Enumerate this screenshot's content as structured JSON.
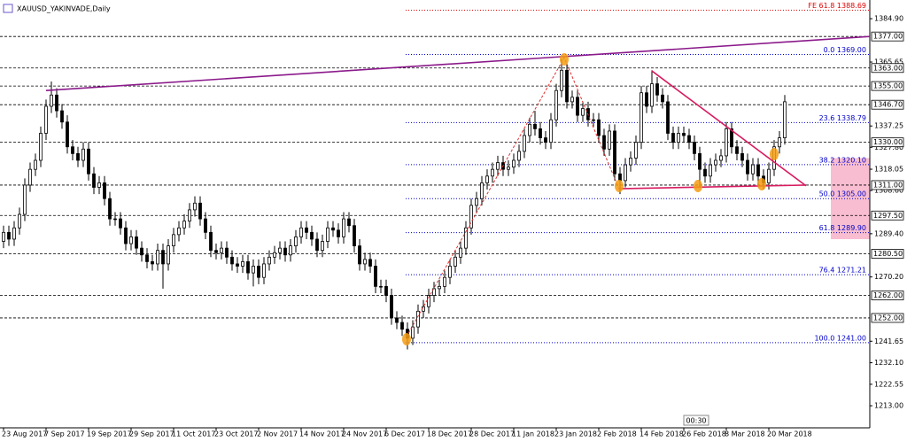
{
  "chart_data": {
    "type": "candlestick",
    "title": "XAUUSD_YAKINVADE,Daily",
    "clock": "00:30",
    "ylim": [
      1203.2,
      1393.2
    ],
    "yticks": [
      {
        "value": 1384.9,
        "label": "1384.90"
      },
      {
        "value": 1365.65,
        "label": "1365.65"
      },
      {
        "value": 1337.25,
        "label": "1337.25"
      },
      {
        "value": 1327.8,
        "label": "1327.80"
      },
      {
        "value": 1318.05,
        "label": "1318.05"
      },
      {
        "value": 1308.6,
        "label": "1308.60"
      },
      {
        "value": 1289.4,
        "label": "1289.40"
      },
      {
        "value": 1270.2,
        "label": "1270.20"
      },
      {
        "value": 1241.65,
        "label": "1241.65"
      },
      {
        "value": 1232.1,
        "label": "1232.10"
      },
      {
        "value": 1222.55,
        "label": "1222.55"
      },
      {
        "value": 1213,
        "label": "1213.00"
      }
    ],
    "xticks": [
      {
        "value": 0,
        "label": "23 Aug 2017"
      },
      {
        "value": 8,
        "label": "7 Sep 2017"
      },
      {
        "value": 16,
        "label": "19 Sep 2017"
      },
      {
        "value": 24,
        "label": "29 Sep 2017"
      },
      {
        "value": 32,
        "label": "11 Oct 2017"
      },
      {
        "value": 40,
        "label": "23 Oct 2017"
      },
      {
        "value": 48,
        "label": "2 Nov 2017"
      },
      {
        "value": 56,
        "label": "14 Nov 2017"
      },
      {
        "value": 64,
        "label": "24 Nov 2017"
      },
      {
        "value": 72,
        "label": "6 Dec 2017"
      },
      {
        "value": 80,
        "label": "18 Dec 2017"
      },
      {
        "value": 88,
        "label": "28 Dec 2017"
      },
      {
        "value": 96,
        "label": "11 Jan 2018"
      },
      {
        "value": 104,
        "label": "23 Jan 2018"
      },
      {
        "value": 112,
        "label": "2 Feb 2018"
      },
      {
        "value": 120,
        "label": "14 Feb 2018"
      },
      {
        "value": 128,
        "label": "26 Feb 2018"
      },
      {
        "value": 136,
        "label": "8 Mar 2018"
      },
      {
        "value": 144,
        "label": "20 Mar 2018"
      }
    ],
    "levels": [
      {
        "value": 1377,
        "label": "1377.00"
      },
      {
        "value": 1363,
        "label": "1363.00"
      },
      {
        "value": 1355,
        "label": "1355.00"
      },
      {
        "value": 1346.7,
        "label": "1346.70"
      },
      {
        "value": 1330,
        "label": "1330.00"
      },
      {
        "value": 1311,
        "label": "1311.00"
      },
      {
        "value": 1297.5,
        "label": "1297.50"
      },
      {
        "value": 1280.5,
        "label": "1280.50"
      },
      {
        "value": 1262,
        "label": "1262.00"
      },
      {
        "value": 1252,
        "label": "1252.00"
      }
    ],
    "fibonacci": {
      "color": "#0000cc",
      "levels": [
        {
          "value": 1369,
          "label": "0.0 1369.00"
        },
        {
          "value": 1338.79,
          "label": "23.6 1338.79"
        },
        {
          "value": 1320.1,
          "label": "38.2 1320.10"
        },
        {
          "value": 1305,
          "label": "50.0 1305.00"
        },
        {
          "value": 1289.9,
          "label": "61.8 1289.90"
        },
        {
          "value": 1271.21,
          "label": "76.4 1271.21"
        },
        {
          "value": 1241,
          "label": "100.0 1241.00"
        }
      ]
    },
    "expansion": {
      "color": "#e00000",
      "value": 1388.69,
      "label": "FE 61.8 1388.69"
    },
    "zone": {
      "color": "#f8bdd0",
      "range": [
        1287,
        1323
      ]
    },
    "trendlines": [
      {
        "color": "#8b1a8b",
        "x": [
          8,
          163
        ],
        "y": [
          1353,
          1377
        ]
      },
      {
        "color": "#d81b60",
        "x": [
          122,
          151
        ],
        "y": [
          1361.7,
          1310.7
        ]
      },
      {
        "color": "#d81b60",
        "x": [
          115.7,
          151
        ],
        "y": [
          1309.4,
          1311
        ]
      }
    ],
    "swing": {
      "color": "#e03030",
      "x": [
        75.8,
        105.5,
        115.7
      ],
      "y": [
        1243.6,
        1367.6,
        1310
      ]
    },
    "open": [
      1286,
      1290,
      1287,
      1292,
      1298,
      1311,
      1318,
      1322,
      1334,
      1346,
      1351,
      1344,
      1339,
      1328,
      1325,
      1322,
      1327,
      1316,
      1310,
      1312,
      1305,
      1296,
      1296,
      1292,
      1285,
      1288,
      1283,
      1280,
      1277,
      1276,
      1282,
      1276,
      1284,
      1289,
      1292,
      1295,
      1300,
      1303,
      1296,
      1290,
      1282,
      1281,
      1283,
      1279,
      1276,
      1275,
      1277,
      1272,
      1275,
      1270,
      1276,
      1279,
      1281,
      1283,
      1280,
      1284,
      1288,
      1292,
      1290,
      1287,
      1282,
      1286,
      1292,
      1291,
      1288,
      1296,
      1293,
      1284,
      1276,
      1278,
      1275,
      1266,
      1266,
      1262,
      1252,
      1250,
      1247,
      1243,
      1248,
      1255,
      1257,
      1262,
      1265,
      1266,
      1270,
      1275,
      1279,
      1283,
      1292,
      1302,
      1305,
      1312,
      1315,
      1318,
      1321,
      1318,
      1319,
      1322,
      1326,
      1333,
      1338,
      1336,
      1332,
      1330,
      1340,
      1353,
      1362,
      1348,
      1350,
      1342,
      1345,
      1340,
      1340,
      1333,
      1327,
      1335,
      1316,
      1313,
      1320,
      1323,
      1330,
      1352,
      1346,
      1356,
      1351,
      1348,
      1334,
      1330,
      1334,
      1333,
      1330,
      1325,
      1318,
      1315,
      1320,
      1322,
      1324,
      1336,
      1328,
      1325,
      1322,
      1316,
      1320,
      1315,
      1312,
      1318,
      1328,
      1332
    ],
    "high": [
      1293,
      1293,
      1295,
      1301,
      1314,
      1321,
      1325,
      1337,
      1349,
      1357,
      1354,
      1347,
      1342,
      1331,
      1328,
      1330,
      1330,
      1319,
      1315,
      1315,
      1308,
      1299,
      1299,
      1295,
      1291,
      1291,
      1286,
      1283,
      1280,
      1285,
      1285,
      1287,
      1292,
      1295,
      1298,
      1303,
      1306,
      1306,
      1299,
      1293,
      1285,
      1286,
      1286,
      1282,
      1279,
      1280,
      1280,
      1278,
      1278,
      1279,
      1282,
      1284,
      1286,
      1286,
      1287,
      1291,
      1295,
      1295,
      1293,
      1290,
      1289,
      1295,
      1295,
      1294,
      1299,
      1299,
      1296,
      1287,
      1281,
      1281,
      1278,
      1269,
      1269,
      1265,
      1255,
      1253,
      1250,
      1251,
      1258,
      1260,
      1265,
      1268,
      1269,
      1273,
      1278,
      1282,
      1286,
      1295,
      1305,
      1308,
      1315,
      1318,
      1321,
      1324,
      1324,
      1322,
      1325,
      1329,
      1336,
      1341,
      1344,
      1339,
      1335,
      1343,
      1356,
      1367,
      1365,
      1353,
      1353,
      1348,
      1348,
      1343,
      1343,
      1336,
      1338,
      1338,
      1319,
      1323,
      1326,
      1333,
      1355,
      1355,
      1362,
      1359,
      1354,
      1351,
      1337,
      1337,
      1337,
      1336,
      1333,
      1328,
      1321,
      1323,
      1325,
      1327,
      1339,
      1339,
      1331,
      1328,
      1325,
      1323,
      1323,
      1318,
      1321,
      1331,
      1335,
      1351
    ],
    "low": [
      1283,
      1284,
      1284,
      1289,
      1295,
      1308,
      1315,
      1319,
      1331,
      1343,
      1341,
      1336,
      1325,
      1322,
      1319,
      1319,
      1313,
      1307,
      1307,
      1302,
      1293,
      1293,
      1289,
      1282,
      1282,
      1280,
      1277,
      1274,
      1273,
      1273,
      1265,
      1273,
      1281,
      1286,
      1289,
      1292,
      1297,
      1293,
      1287,
      1279,
      1278,
      1278,
      1276,
      1273,
      1272,
      1272,
      1269,
      1266,
      1267,
      1267,
      1273,
      1276,
      1278,
      1277,
      1277,
      1281,
      1285,
      1287,
      1284,
      1279,
      1279,
      1283,
      1288,
      1285,
      1285,
      1290,
      1281,
      1273,
      1273,
      1272,
      1263,
      1263,
      1259,
      1249,
      1247,
      1244,
      1238,
      1240,
      1245,
      1252,
      1254,
      1259,
      1262,
      1263,
      1267,
      1272,
      1276,
      1280,
      1289,
      1299,
      1302,
      1309,
      1312,
      1315,
      1315,
      1315,
      1316,
      1319,
      1323,
      1330,
      1333,
      1329,
      1327,
      1327,
      1337,
      1350,
      1345,
      1345,
      1339,
      1339,
      1337,
      1337,
      1330,
      1324,
      1324,
      1313,
      1307,
      1310,
      1317,
      1320,
      1327,
      1343,
      1343,
      1348,
      1345,
      1331,
      1327,
      1327,
      1330,
      1327,
      1322,
      1310,
      1312,
      1312,
      1317,
      1319,
      1321,
      1325,
      1322,
      1319,
      1313,
      1313,
      1310,
      1309,
      1309,
      1315,
      1325,
      1329
    ],
    "close": [
      1290,
      1287,
      1292,
      1298,
      1311,
      1318,
      1322,
      1334,
      1346,
      1351,
      1344,
      1339,
      1328,
      1325,
      1322,
      1327,
      1316,
      1310,
      1312,
      1305,
      1296,
      1296,
      1292,
      1285,
      1288,
      1283,
      1280,
      1277,
      1276,
      1282,
      1276,
      1284,
      1289,
      1292,
      1295,
      1300,
      1303,
      1296,
      1290,
      1282,
      1281,
      1283,
      1279,
      1276,
      1275,
      1277,
      1272,
      1275,
      1270,
      1276,
      1279,
      1281,
      1283,
      1280,
      1284,
      1288,
      1292,
      1290,
      1287,
      1282,
      1286,
      1292,
      1291,
      1288,
      1296,
      1293,
      1284,
      1276,
      1278,
      1275,
      1266,
      1266,
      1262,
      1252,
      1250,
      1247,
      1243,
      1248,
      1255,
      1257,
      1262,
      1265,
      1266,
      1270,
      1275,
      1279,
      1283,
      1292,
      1302,
      1305,
      1312,
      1315,
      1318,
      1321,
      1318,
      1319,
      1322,
      1326,
      1333,
      1338,
      1336,
      1332,
      1330,
      1340,
      1353,
      1362,
      1348,
      1350,
      1342,
      1345,
      1340,
      1340,
      1333,
      1327,
      1335,
      1316,
      1313,
      1320,
      1323,
      1330,
      1352,
      1346,
      1356,
      1351,
      1348,
      1334,
      1330,
      1334,
      1333,
      1330,
      1325,
      1318,
      1315,
      1320,
      1322,
      1324,
      1336,
      1328,
      1325,
      1322,
      1316,
      1320,
      1315,
      1312,
      1318,
      1328,
      1332,
      1348
    ]
  }
}
